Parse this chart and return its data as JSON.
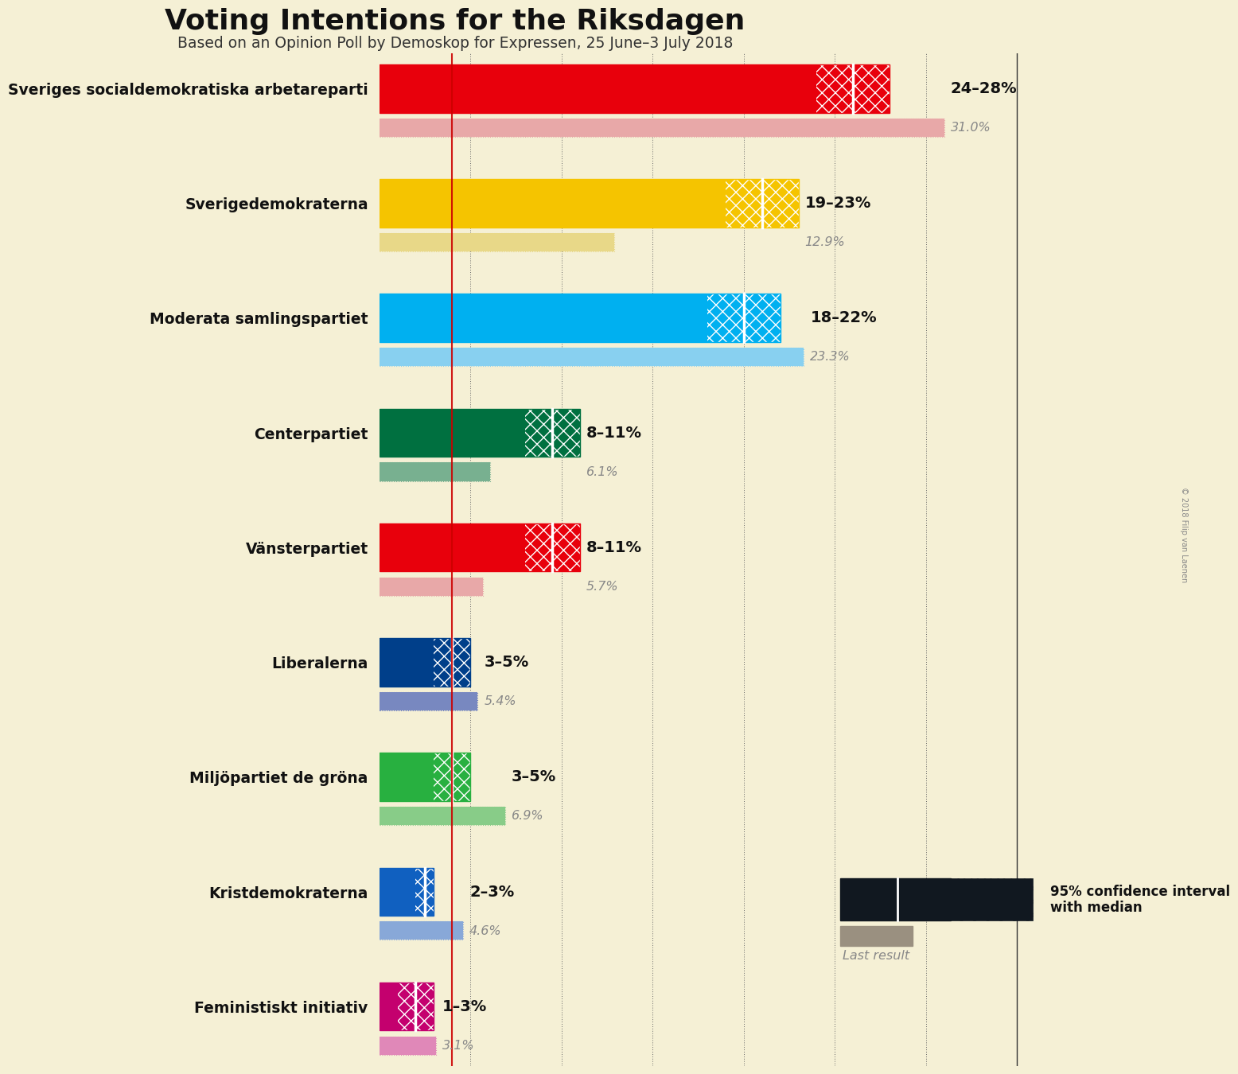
{
  "title": "Voting Intentions for the Riksdagen",
  "subtitle": "Based on an Opinion Poll by Demoskop for Expressen, 25 June–3 July 2018",
  "background_color": "#f5f0d5",
  "parties": [
    "Sveriges socialdemokratiska arbetareparti",
    "Sverigedemokraterna",
    "Moderata samlingspartiet",
    "Centerpartiet",
    "Vänsterpartiet",
    "Liberalerna",
    "Miljöpartiet de gröna",
    "Kristdemokraterna",
    "Feministiskt initiativ"
  ],
  "ci_low": [
    24,
    19,
    18,
    8,
    8,
    3,
    3,
    2,
    1
  ],
  "ci_median": [
    26,
    21,
    20,
    9.5,
    9.5,
    4,
    4,
    2.5,
    2
  ],
  "ci_high": [
    28,
    23,
    22,
    11,
    11,
    5,
    5,
    3,
    3
  ],
  "last_result": [
    31.0,
    12.9,
    23.3,
    6.1,
    5.7,
    5.4,
    6.9,
    4.6,
    3.1
  ],
  "ci_labels": [
    "24–28%",
    "19–23%",
    "18–22%",
    "8–11%",
    "8–11%",
    "3–5%",
    "3–5%",
    "2–3%",
    "1–3%"
  ],
  "last_labels": [
    "31.0%",
    "12.9%",
    "23.3%",
    "6.1%",
    "5.7%",
    "5.4%",
    "6.9%",
    "4.6%",
    "3.1%"
  ],
  "colors": [
    "#e8000c",
    "#f5c400",
    "#00b0f0",
    "#007040",
    "#e8000c",
    "#003f8a",
    "#28b040",
    "#1060c0",
    "#c4006e"
  ],
  "last_colors": [
    "#e8a8a8",
    "#e8d888",
    "#88d0f0",
    "#78b090",
    "#e8a8a8",
    "#7888c0",
    "#88cc88",
    "#88a8d8",
    "#e088b8"
  ],
  "hatch_edgecolors": [
    "#e8000c",
    "#f5c400",
    "#00b0f0",
    "#007040",
    "#e8000c",
    "#003f8a",
    "#28b040",
    "#1060c0",
    "#c4006e"
  ],
  "xlim": [
    0,
    35
  ],
  "grid_values": [
    5,
    10,
    15,
    20,
    25,
    30,
    35
  ],
  "legend_note": "95% confidence interval\nwith median",
  "last_result_note": "Last result",
  "copyright": "© 2018 Filip van Laenen"
}
